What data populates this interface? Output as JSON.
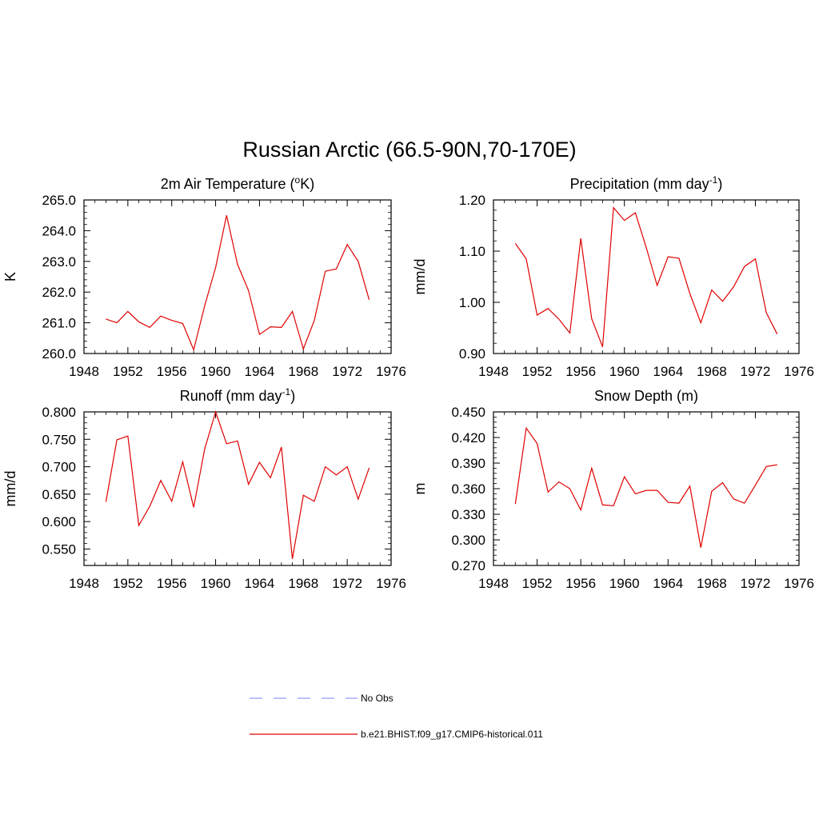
{
  "figure": {
    "title": "Russian Arctic (66.5-90N,70-170E)"
  },
  "chart_data": [
    {
      "type": "line",
      "title": "2m Air Temperature (",
      "title_sup": "o",
      "title_end": "K)",
      "ylabel": "K",
      "xlim": [
        1948,
        1976
      ],
      "ylim": [
        260.0,
        265.0
      ],
      "xticks": [
        1948,
        1952,
        1956,
        1960,
        1964,
        1968,
        1972,
        1976
      ],
      "yticks": [
        "260.0",
        "261.0",
        "262.0",
        "263.0",
        "264.0",
        "265.0"
      ],
      "color": "#e00000",
      "series": [
        {
          "x": [
            1950,
            1951,
            1952,
            1953,
            1954,
            1955,
            1956,
            1957,
            1958,
            1959,
            1960,
            1961,
            1962,
            1963,
            1964,
            1965,
            1966,
            1967,
            1968,
            1969,
            1970,
            1971,
            1972,
            1973,
            1974
          ],
          "y": [
            261.12,
            261.0,
            261.37,
            261.03,
            260.85,
            261.22,
            261.08,
            260.98,
            260.12,
            261.55,
            262.8,
            264.5,
            262.9,
            262.05,
            260.62,
            260.87,
            260.85,
            261.37,
            260.15,
            261.08,
            262.68,
            262.75,
            263.55,
            263.0,
            261.75
          ]
        }
      ]
    },
    {
      "type": "line",
      "title": "Precipitation (mm day",
      "title_sup": "-1",
      "title_end": ")",
      "ylabel": "mm/d",
      "xlim": [
        1948,
        1976
      ],
      "ylim": [
        0.9,
        1.2
      ],
      "xticks": [
        1948,
        1952,
        1956,
        1960,
        1964,
        1968,
        1972,
        1976
      ],
      "yticks": [
        "0.90",
        "1.00",
        "1.10",
        "1.20"
      ],
      "color": "#e00000",
      "series": [
        {
          "x": [
            1950,
            1951,
            1952,
            1953,
            1954,
            1955,
            1956,
            1957,
            1958,
            1959,
            1960,
            1961,
            1962,
            1963,
            1964,
            1965,
            1966,
            1967,
            1968,
            1969,
            1970,
            1971,
            1972,
            1973,
            1974
          ],
          "y": [
            1.115,
            1.085,
            0.975,
            0.988,
            0.967,
            0.94,
            1.125,
            0.968,
            0.913,
            1.185,
            1.16,
            1.175,
            1.107,
            1.033,
            1.089,
            1.086,
            1.017,
            0.96,
            1.024,
            1.002,
            1.03,
            1.07,
            1.085,
            0.98,
            0.938
          ]
        }
      ]
    },
    {
      "type": "line",
      "title": "Runoff (mm day",
      "title_sup": "-1",
      "title_end": ")",
      "ylabel": "mm/d",
      "xlim": [
        1948,
        1976
      ],
      "ylim": [
        0.52,
        0.8
      ],
      "xticks": [
        1948,
        1952,
        1956,
        1960,
        1964,
        1968,
        1972,
        1976
      ],
      "yticks": [
        "0.550",
        "0.600",
        "0.650",
        "0.700",
        "0.750",
        "0.800"
      ],
      "color": "#e00000",
      "series": [
        {
          "x": [
            1950,
            1951,
            1952,
            1953,
            1954,
            1955,
            1956,
            1957,
            1958,
            1959,
            1960,
            1961,
            1962,
            1963,
            1964,
            1965,
            1966,
            1967,
            1968,
            1969,
            1970,
            1971,
            1972,
            1973,
            1974
          ],
          "y": [
            0.636,
            0.749,
            0.756,
            0.593,
            0.628,
            0.675,
            0.637,
            0.709,
            0.626,
            0.732,
            0.8,
            0.742,
            0.747,
            0.668,
            0.708,
            0.68,
            0.736,
            0.532,
            0.648,
            0.637,
            0.7,
            0.685,
            0.7,
            0.641,
            0.698
          ]
        }
      ]
    },
    {
      "type": "line",
      "title": "Snow Depth (m)",
      "title_sup": "",
      "title_end": "",
      "ylabel": "m",
      "xlim": [
        1948,
        1976
      ],
      "ylim": [
        0.27,
        0.45
      ],
      "xticks": [
        1948,
        1952,
        1956,
        1960,
        1964,
        1968,
        1972,
        1976
      ],
      "yticks": [
        "0.270",
        "0.300",
        "0.330",
        "0.360",
        "0.390",
        "0.420",
        "0.450"
      ],
      "color": "#e00000",
      "series": [
        {
          "x": [
            1950,
            1951,
            1952,
            1953,
            1954,
            1955,
            1956,
            1957,
            1958,
            1959,
            1960,
            1961,
            1962,
            1963,
            1964,
            1965,
            1966,
            1967,
            1968,
            1969,
            1970,
            1971,
            1972,
            1973,
            1974
          ],
          "y": [
            0.342,
            0.431,
            0.413,
            0.356,
            0.368,
            0.36,
            0.335,
            0.384,
            0.341,
            0.34,
            0.374,
            0.354,
            0.358,
            0.358,
            0.344,
            0.343,
            0.363,
            0.291,
            0.357,
            0.367,
            0.348,
            0.343,
            0.364,
            0.386,
            0.388
          ]
        }
      ]
    }
  ],
  "legend": {
    "items": [
      {
        "label": "No Obs",
        "color": "#9999ff",
        "style": "dashed"
      },
      {
        "label": "b.e21.BHIST.f09_g17.CMIP6-historical.011",
        "color": "#e00000",
        "style": "solid"
      }
    ]
  }
}
